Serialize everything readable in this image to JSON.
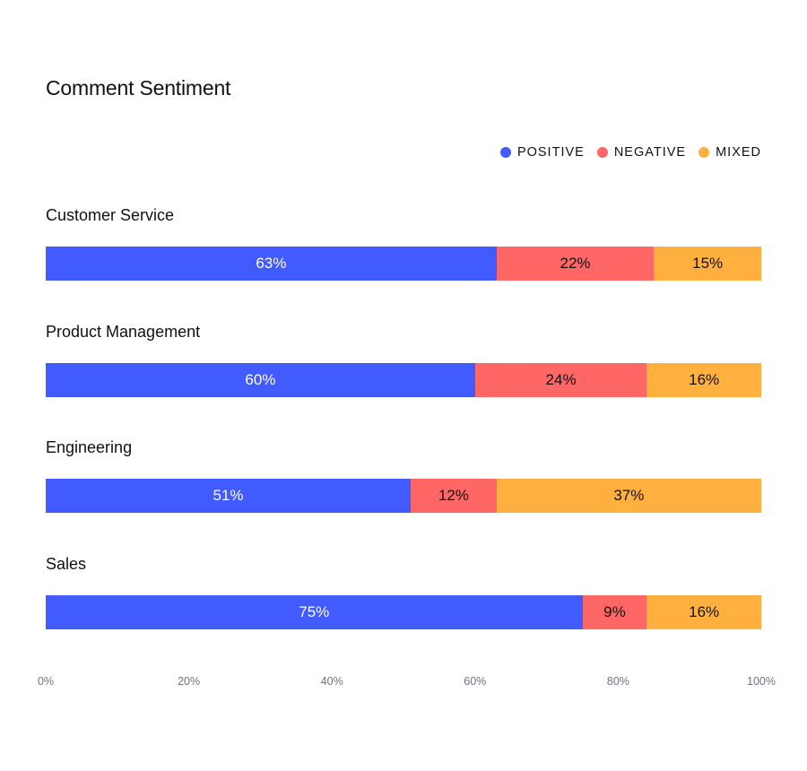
{
  "chart_data": {
    "type": "bar",
    "orientation": "horizontal",
    "stacked": true,
    "title": "Comment Sentiment",
    "categories": [
      "Customer Service",
      "Product Management",
      "Engineering",
      "Sales"
    ],
    "series": [
      {
        "key": "positive",
        "name": "POSITIVE",
        "color": "#425bff",
        "values": [
          63,
          60,
          51,
          75
        ],
        "labels": [
          "63%",
          "60%",
          "51%",
          "75%"
        ]
      },
      {
        "key": "negative",
        "name": "NEGATIVE",
        "color": "#ff6666",
        "values": [
          22,
          24,
          12,
          9
        ],
        "labels": [
          "22%",
          "24%",
          "12%",
          "9%"
        ]
      },
      {
        "key": "mixed",
        "name": "MIXED",
        "color": "#ffb03f",
        "values": [
          15,
          16,
          37,
          16
        ],
        "labels": [
          "15%",
          "16%",
          "37%",
          "16%"
        ]
      }
    ],
    "xlim": [
      0,
      100
    ],
    "xticks": [
      "0%",
      "20%",
      "40%",
      "60%",
      "80%",
      "100%"
    ],
    "grid": false,
    "legend_position": "top-right"
  }
}
